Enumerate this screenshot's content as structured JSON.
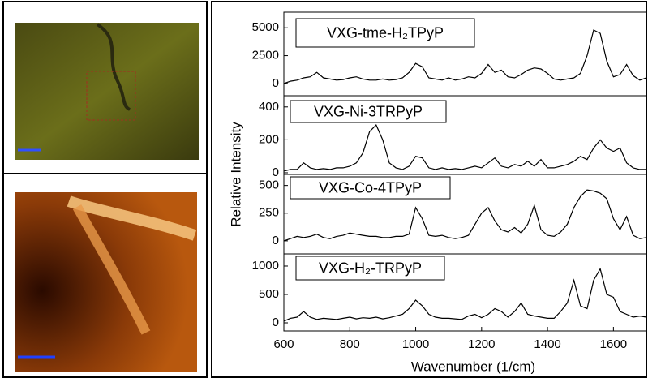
{
  "y_label": "Relative Intensity",
  "chart_data": [
    {
      "type": "line",
      "xlim": [
        600,
        1700
      ],
      "ylim": [
        -1100,
        6400
      ],
      "yticks": [
        0,
        2500,
        5000
      ],
      "x": [
        600,
        620,
        640,
        660,
        680,
        700,
        720,
        740,
        760,
        780,
        800,
        820,
        840,
        860,
        880,
        900,
        920,
        940,
        960,
        980,
        1000,
        1020,
        1040,
        1060,
        1080,
        1100,
        1120,
        1140,
        1160,
        1180,
        1200,
        1220,
        1240,
        1260,
        1280,
        1300,
        1320,
        1340,
        1360,
        1380,
        1400,
        1420,
        1440,
        1460,
        1480,
        1500,
        1520,
        1540,
        1560,
        1580,
        1600,
        1620,
        1640,
        1660,
        1680,
        1700
      ],
      "series": [
        {
          "name": "VXG-tme-H₂TPyP",
          "color": "#000000",
          "values": [
            0,
            200,
            300,
            500,
            600,
            1000,
            500,
            400,
            300,
            350,
            500,
            600,
            400,
            300,
            300,
            400,
            300,
            350,
            500,
            1000,
            1800,
            1500,
            500,
            400,
            300,
            500,
            300,
            400,
            600,
            500,
            900,
            1700,
            1000,
            1200,
            600,
            500,
            800,
            1200,
            1400,
            1300,
            900,
            400,
            300,
            400,
            500,
            900,
            2500,
            4800,
            4500,
            2000,
            600,
            800,
            1700,
            700,
            300,
            500
          ]
        }
      ]
    },
    {
      "type": "line",
      "xlim": [
        600,
        1700
      ],
      "ylim": [
        -10,
        468
      ],
      "yticks": [
        0,
        200,
        400
      ],
      "x": [
        600,
        620,
        640,
        660,
        680,
        700,
        720,
        740,
        760,
        780,
        800,
        820,
        840,
        860,
        880,
        900,
        920,
        940,
        960,
        980,
        1000,
        1020,
        1040,
        1060,
        1080,
        1100,
        1120,
        1140,
        1160,
        1180,
        1200,
        1220,
        1240,
        1260,
        1280,
        1300,
        1320,
        1340,
        1360,
        1380,
        1400,
        1420,
        1440,
        1460,
        1480,
        1500,
        1520,
        1540,
        1560,
        1580,
        1600,
        1620,
        1640,
        1660,
        1680,
        1700
      ],
      "series": [
        {
          "name": "VXG-Ni-3TRPyP",
          "color": "#000000",
          "values": [
            10,
            20,
            20,
            60,
            30,
            20,
            25,
            20,
            30,
            30,
            40,
            60,
            120,
            250,
            290,
            200,
            60,
            30,
            20,
            40,
            100,
            90,
            30,
            20,
            30,
            20,
            25,
            20,
            30,
            40,
            30,
            60,
            90,
            40,
            30,
            50,
            40,
            70,
            40,
            80,
            30,
            30,
            40,
            50,
            70,
            100,
            80,
            150,
            200,
            150,
            130,
            150,
            60,
            30,
            20,
            20
          ]
        }
      ]
    },
    {
      "type": "line",
      "xlim": [
        600,
        1700
      ],
      "ylim": [
        -118,
        600
      ],
      "yticks": [
        0,
        250,
        500
      ],
      "x": [
        600,
        620,
        640,
        660,
        680,
        700,
        720,
        740,
        760,
        780,
        800,
        820,
        840,
        860,
        880,
        900,
        920,
        940,
        960,
        980,
        1000,
        1020,
        1040,
        1060,
        1080,
        1100,
        1120,
        1140,
        1160,
        1180,
        1200,
        1220,
        1240,
        1260,
        1280,
        1300,
        1320,
        1340,
        1360,
        1380,
        1400,
        1420,
        1440,
        1460,
        1480,
        1500,
        1520,
        1540,
        1560,
        1580,
        1600,
        1620,
        1640,
        1660,
        1680,
        1700
      ],
      "series": [
        {
          "name": "VXG-Co-4TPyP",
          "color": "#000000",
          "values": [
            0,
            20,
            40,
            30,
            40,
            60,
            30,
            20,
            40,
            50,
            70,
            60,
            50,
            40,
            40,
            30,
            30,
            40,
            40,
            60,
            300,
            200,
            50,
            40,
            50,
            30,
            20,
            30,
            50,
            150,
            250,
            300,
            180,
            100,
            80,
            120,
            70,
            150,
            320,
            100,
            50,
            40,
            80,
            150,
            300,
            400,
            460,
            450,
            430,
            380,
            200,
            100,
            220,
            50,
            20,
            30
          ]
        }
      ]
    },
    {
      "type": "line",
      "xlim": [
        600,
        1700
      ],
      "ylim": [
        -143,
        1214
      ],
      "yticks": [
        0,
        500,
        1000
      ],
      "x_label": "Wavenumber (1/cm)",
      "xticks": [
        600,
        800,
        1000,
        1200,
        1400,
        1600
      ],
      "x": [
        600,
        620,
        640,
        660,
        680,
        700,
        720,
        740,
        760,
        780,
        800,
        820,
        840,
        860,
        880,
        900,
        920,
        940,
        960,
        980,
        1000,
        1020,
        1040,
        1060,
        1080,
        1100,
        1120,
        1140,
        1160,
        1180,
        1200,
        1220,
        1240,
        1260,
        1280,
        1300,
        1320,
        1340,
        1360,
        1380,
        1400,
        1420,
        1440,
        1460,
        1480,
        1500,
        1520,
        1540,
        1560,
        1580,
        1600,
        1620,
        1640,
        1660,
        1680,
        1700
      ],
      "series": [
        {
          "name": "VXG-H₂-TRPyP",
          "color": "#000000",
          "values": [
            30,
            80,
            100,
            200,
            100,
            60,
            80,
            70,
            60,
            80,
            100,
            70,
            90,
            80,
            100,
            70,
            90,
            120,
            150,
            250,
            400,
            300,
            150,
            100,
            80,
            80,
            70,
            60,
            120,
            150,
            90,
            150,
            250,
            200,
            100,
            200,
            350,
            150,
            120,
            100,
            80,
            80,
            200,
            350,
            750,
            300,
            250,
            750,
            950,
            500,
            450,
            200,
            150,
            100,
            120,
            100
          ]
        }
      ]
    }
  ]
}
